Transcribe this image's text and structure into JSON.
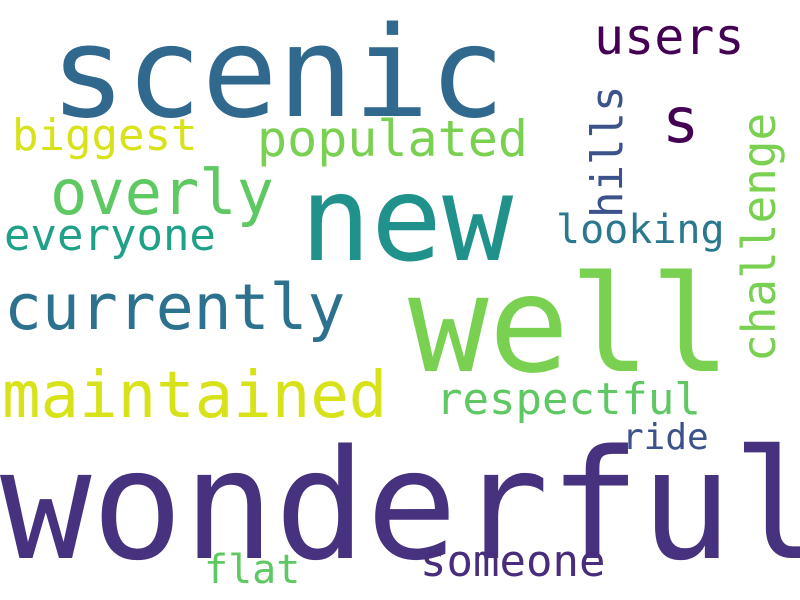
{
  "words": [
    {
      "text": "wonderful",
      "color": "#46327e"
    },
    {
      "text": "well",
      "color": "#7ad151"
    },
    {
      "text": "new",
      "color": "#21918c"
    },
    {
      "text": "scenic",
      "color": "#31688e"
    },
    {
      "text": "maintained",
      "color": "#d8e219"
    },
    {
      "text": "currently",
      "color": "#2c728e"
    },
    {
      "text": "overly",
      "color": "#5ec962"
    },
    {
      "text": "populated",
      "color": "#7ad151"
    },
    {
      "text": "users",
      "color": "#440154"
    },
    {
      "text": "s",
      "color": "#440154"
    },
    {
      "text": "biggest",
      "color": "#d8e219"
    },
    {
      "text": "everyone",
      "color": "#1fa187"
    },
    {
      "text": "looking",
      "color": "#2a788e"
    },
    {
      "text": "respectful",
      "color": "#5ec962"
    },
    {
      "text": "ride",
      "color": "#3b528b"
    },
    {
      "text": "someone",
      "color": "#472d7b"
    },
    {
      "text": "flat",
      "color": "#5ec962"
    },
    {
      "text": "hills",
      "color": "#3b528b"
    },
    {
      "text": "challenge",
      "color": "#7ad151"
    }
  ]
}
